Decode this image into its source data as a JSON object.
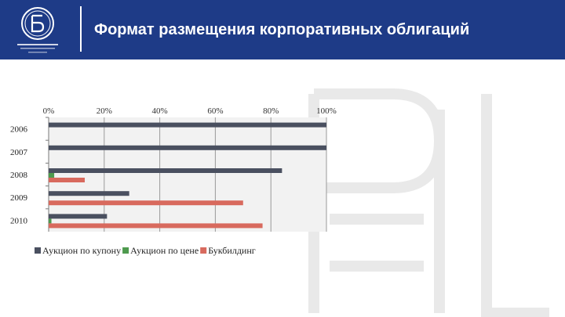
{
  "header": {
    "title": "Формат размещения корпоративных облигаций"
  },
  "colors": {
    "header_bg": "#1e3b87",
    "series_1": "#4a5060",
    "series_2": "#4e9a4e",
    "series_3": "#d86a5e"
  },
  "chart_data": {
    "type": "bar",
    "orientation": "horizontal",
    "categories": [
      "2006",
      "2007",
      "2008",
      "2009",
      "2010"
    ],
    "x_ticks": [
      "0%",
      "20%",
      "40%",
      "60%",
      "80%",
      "100%"
    ],
    "xlim": [
      0,
      100
    ],
    "grid": true,
    "legend_position": "bottom",
    "series": [
      {
        "name": "Аукцион по купону",
        "values": [
          100,
          100,
          84,
          29,
          21
        ]
      },
      {
        "name": "Аукцион по цене",
        "values": [
          0,
          0,
          2,
          0,
          1
        ]
      },
      {
        "name": "Букбилдинг",
        "values": [
          0,
          0,
          13,
          70,
          77
        ]
      }
    ]
  }
}
